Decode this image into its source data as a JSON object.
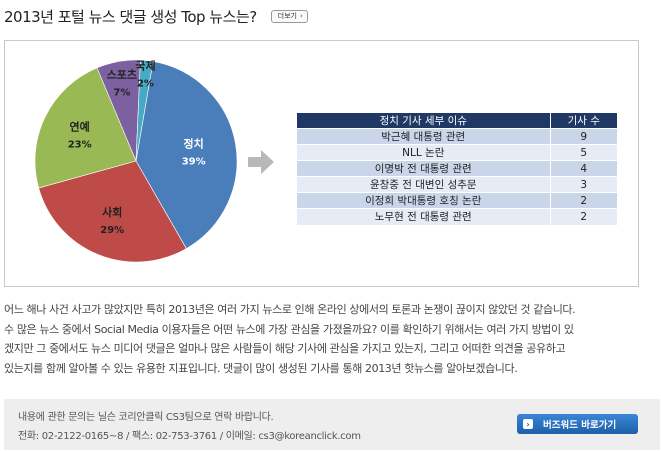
{
  "header": {
    "title": "2013년 포털 뉴스 댓글 생성 Top 뉴스는?",
    "more_label": "더보기"
  },
  "chart_data": {
    "type": "pie",
    "slices": [
      {
        "label": "정치",
        "value": 39,
        "value_text": "39%",
        "color": "#4a7ebb"
      },
      {
        "label": "사회",
        "value": 29,
        "value_text": "29%",
        "color": "#be4b48"
      },
      {
        "label": "연예",
        "value": 23,
        "value_text": "23%",
        "color": "#98b954"
      },
      {
        "label": "스포츠",
        "value": 7,
        "value_text": "7%",
        "color": "#7d60a0"
      },
      {
        "label": "국제",
        "value": 2,
        "value_text": "2%",
        "color": "#46aac5"
      }
    ]
  },
  "table": {
    "headers": [
      "정치 기사 세부 이슈",
      "기사 수"
    ],
    "rows": [
      {
        "issue": "박근혜 대통령 관련",
        "count": "9"
      },
      {
        "issue": "NLL 논란",
        "count": "5"
      },
      {
        "issue": "이명박 전 대통령 관련",
        "count": "4"
      },
      {
        "issue": "윤창중 전 대변인 성추문",
        "count": "3"
      },
      {
        "issue": "이정희 박대통령 호칭 논란",
        "count": "2"
      },
      {
        "issue": "노무현 전 대통령 관련",
        "count": "2"
      }
    ]
  },
  "description": {
    "lines": [
      "어느 해나 사건 사고가 많았지만 특히 2013년은 여러 가지 뉴스로 인해 온라인 상에서의 토론과 논쟁이 끊이지 않았던 것 같습니다.",
      "수 많은 뉴스 중에서 Social Media 이용자들은 어떤 뉴스에 가장 관심을 가졌을까요? 이를 확인하기 위해서는 여러 가지 방법이 있",
      "겠지만 그 중에서도 뉴스 미디어 댓글은 얼마나 많은 사람들이 해당 기사에 관심을 가지고 있는지, 그리고 어떠한 의견을 공유하고",
      "있는지를 함께 알아볼 수 있는 유용한 지표입니다. 댓글이 많이 생성된 기사를 통해 2013년 핫뉴스를 알아보겠습니다."
    ]
  },
  "footer": {
    "contact_line1": "내용에 관한 문의는 닐슨 코리안클릭 CS3팀으로 연락 바랍니다.",
    "contact_line2": "전화: 02-2122-0165~8 / 팩스: 02-753-3761 / 이메일: cs3@koreanclick.com",
    "button_label": "버즈워드 바로가기"
  }
}
